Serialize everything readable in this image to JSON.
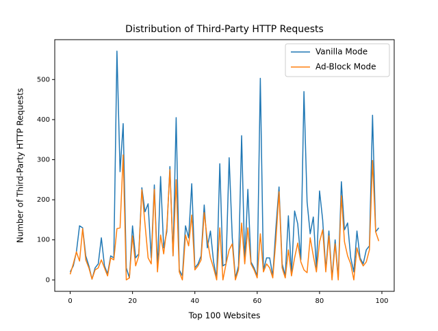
{
  "chart_data": {
    "type": "line",
    "title": "Distribution of Third-Party HTTP Requests",
    "xlabel": "Top 100 Websites",
    "ylabel": "Number of Third-Party HTTP Requests",
    "x": [
      0,
      1,
      2,
      3,
      4,
      5,
      6,
      7,
      8,
      9,
      10,
      11,
      12,
      13,
      14,
      15,
      16,
      17,
      18,
      19,
      20,
      21,
      22,
      23,
      24,
      25,
      26,
      27,
      28,
      29,
      30,
      31,
      32,
      33,
      34,
      35,
      36,
      37,
      38,
      39,
      40,
      41,
      42,
      43,
      44,
      45,
      46,
      47,
      48,
      49,
      50,
      51,
      52,
      53,
      54,
      55,
      56,
      57,
      58,
      59,
      60,
      61,
      62,
      63,
      64,
      65,
      66,
      67,
      68,
      69,
      70,
      71,
      72,
      73,
      74,
      75,
      76,
      77,
      78,
      79,
      80,
      81,
      82,
      83,
      84,
      85,
      86,
      87,
      88,
      89,
      90,
      91,
      92,
      93,
      94,
      95,
      96,
      97,
      98,
      99
    ],
    "series": [
      {
        "name": "Vanilla Mode",
        "color": "#1f77b4",
        "values": [
          20,
          35,
          70,
          135,
          130,
          60,
          35,
          2,
          30,
          40,
          105,
          35,
          15,
          60,
          55,
          571,
          270,
          390,
          30,
          5,
          135,
          55,
          65,
          230,
          170,
          190,
          55,
          237,
          30,
          258,
          80,
          120,
          283,
          60,
          405,
          25,
          10,
          135,
          105,
          240,
          30,
          40,
          60,
          187,
          80,
          122,
          45,
          5,
          290,
          35,
          40,
          305,
          105,
          5,
          35,
          360,
          45,
          226,
          45,
          30,
          10,
          503,
          25,
          55,
          55,
          10,
          130,
          232,
          40,
          10,
          160,
          15,
          172,
          140,
          50,
          470,
          195,
          115,
          157,
          30,
          222,
          150,
          25,
          122,
          5,
          100,
          5,
          245,
          125,
          142,
          55,
          20,
          122,
          55,
          40,
          75,
          85,
          411,
          120,
          130
        ]
      },
      {
        "name": "Ad-Block Mode",
        "color": "#ff7f0e",
        "values": [
          14,
          40,
          70,
          47,
          128,
          50,
          30,
          2,
          25,
          30,
          50,
          30,
          10,
          55,
          50,
          128,
          130,
          312,
          0,
          5,
          110,
          35,
          60,
          225,
          140,
          55,
          40,
          226,
          20,
          112,
          65,
          130,
          275,
          60,
          250,
          20,
          0,
          112,
          85,
          162,
          25,
          35,
          50,
          168,
          100,
          55,
          30,
          0,
          130,
          0,
          40,
          75,
          90,
          0,
          25,
          142,
          40,
          130,
          40,
          25,
          5,
          115,
          20,
          40,
          30,
          5,
          100,
          220,
          30,
          5,
          75,
          10,
          55,
          92,
          45,
          25,
          18,
          105,
          60,
          20,
          95,
          125,
          20,
          110,
          0,
          90,
          0,
          210,
          95,
          60,
          40,
          0,
          80,
          50,
          35,
          45,
          75,
          298,
          120,
          97
        ]
      }
    ],
    "xlim": [
      -4.95,
      103.95
    ],
    "xticks": [
      0,
      20,
      40,
      60,
      80,
      100
    ],
    "ylim": [
      -28.5,
      599.5
    ],
    "yticks": [
      0,
      100,
      200,
      300,
      400,
      500
    ],
    "legend": "upper right"
  }
}
